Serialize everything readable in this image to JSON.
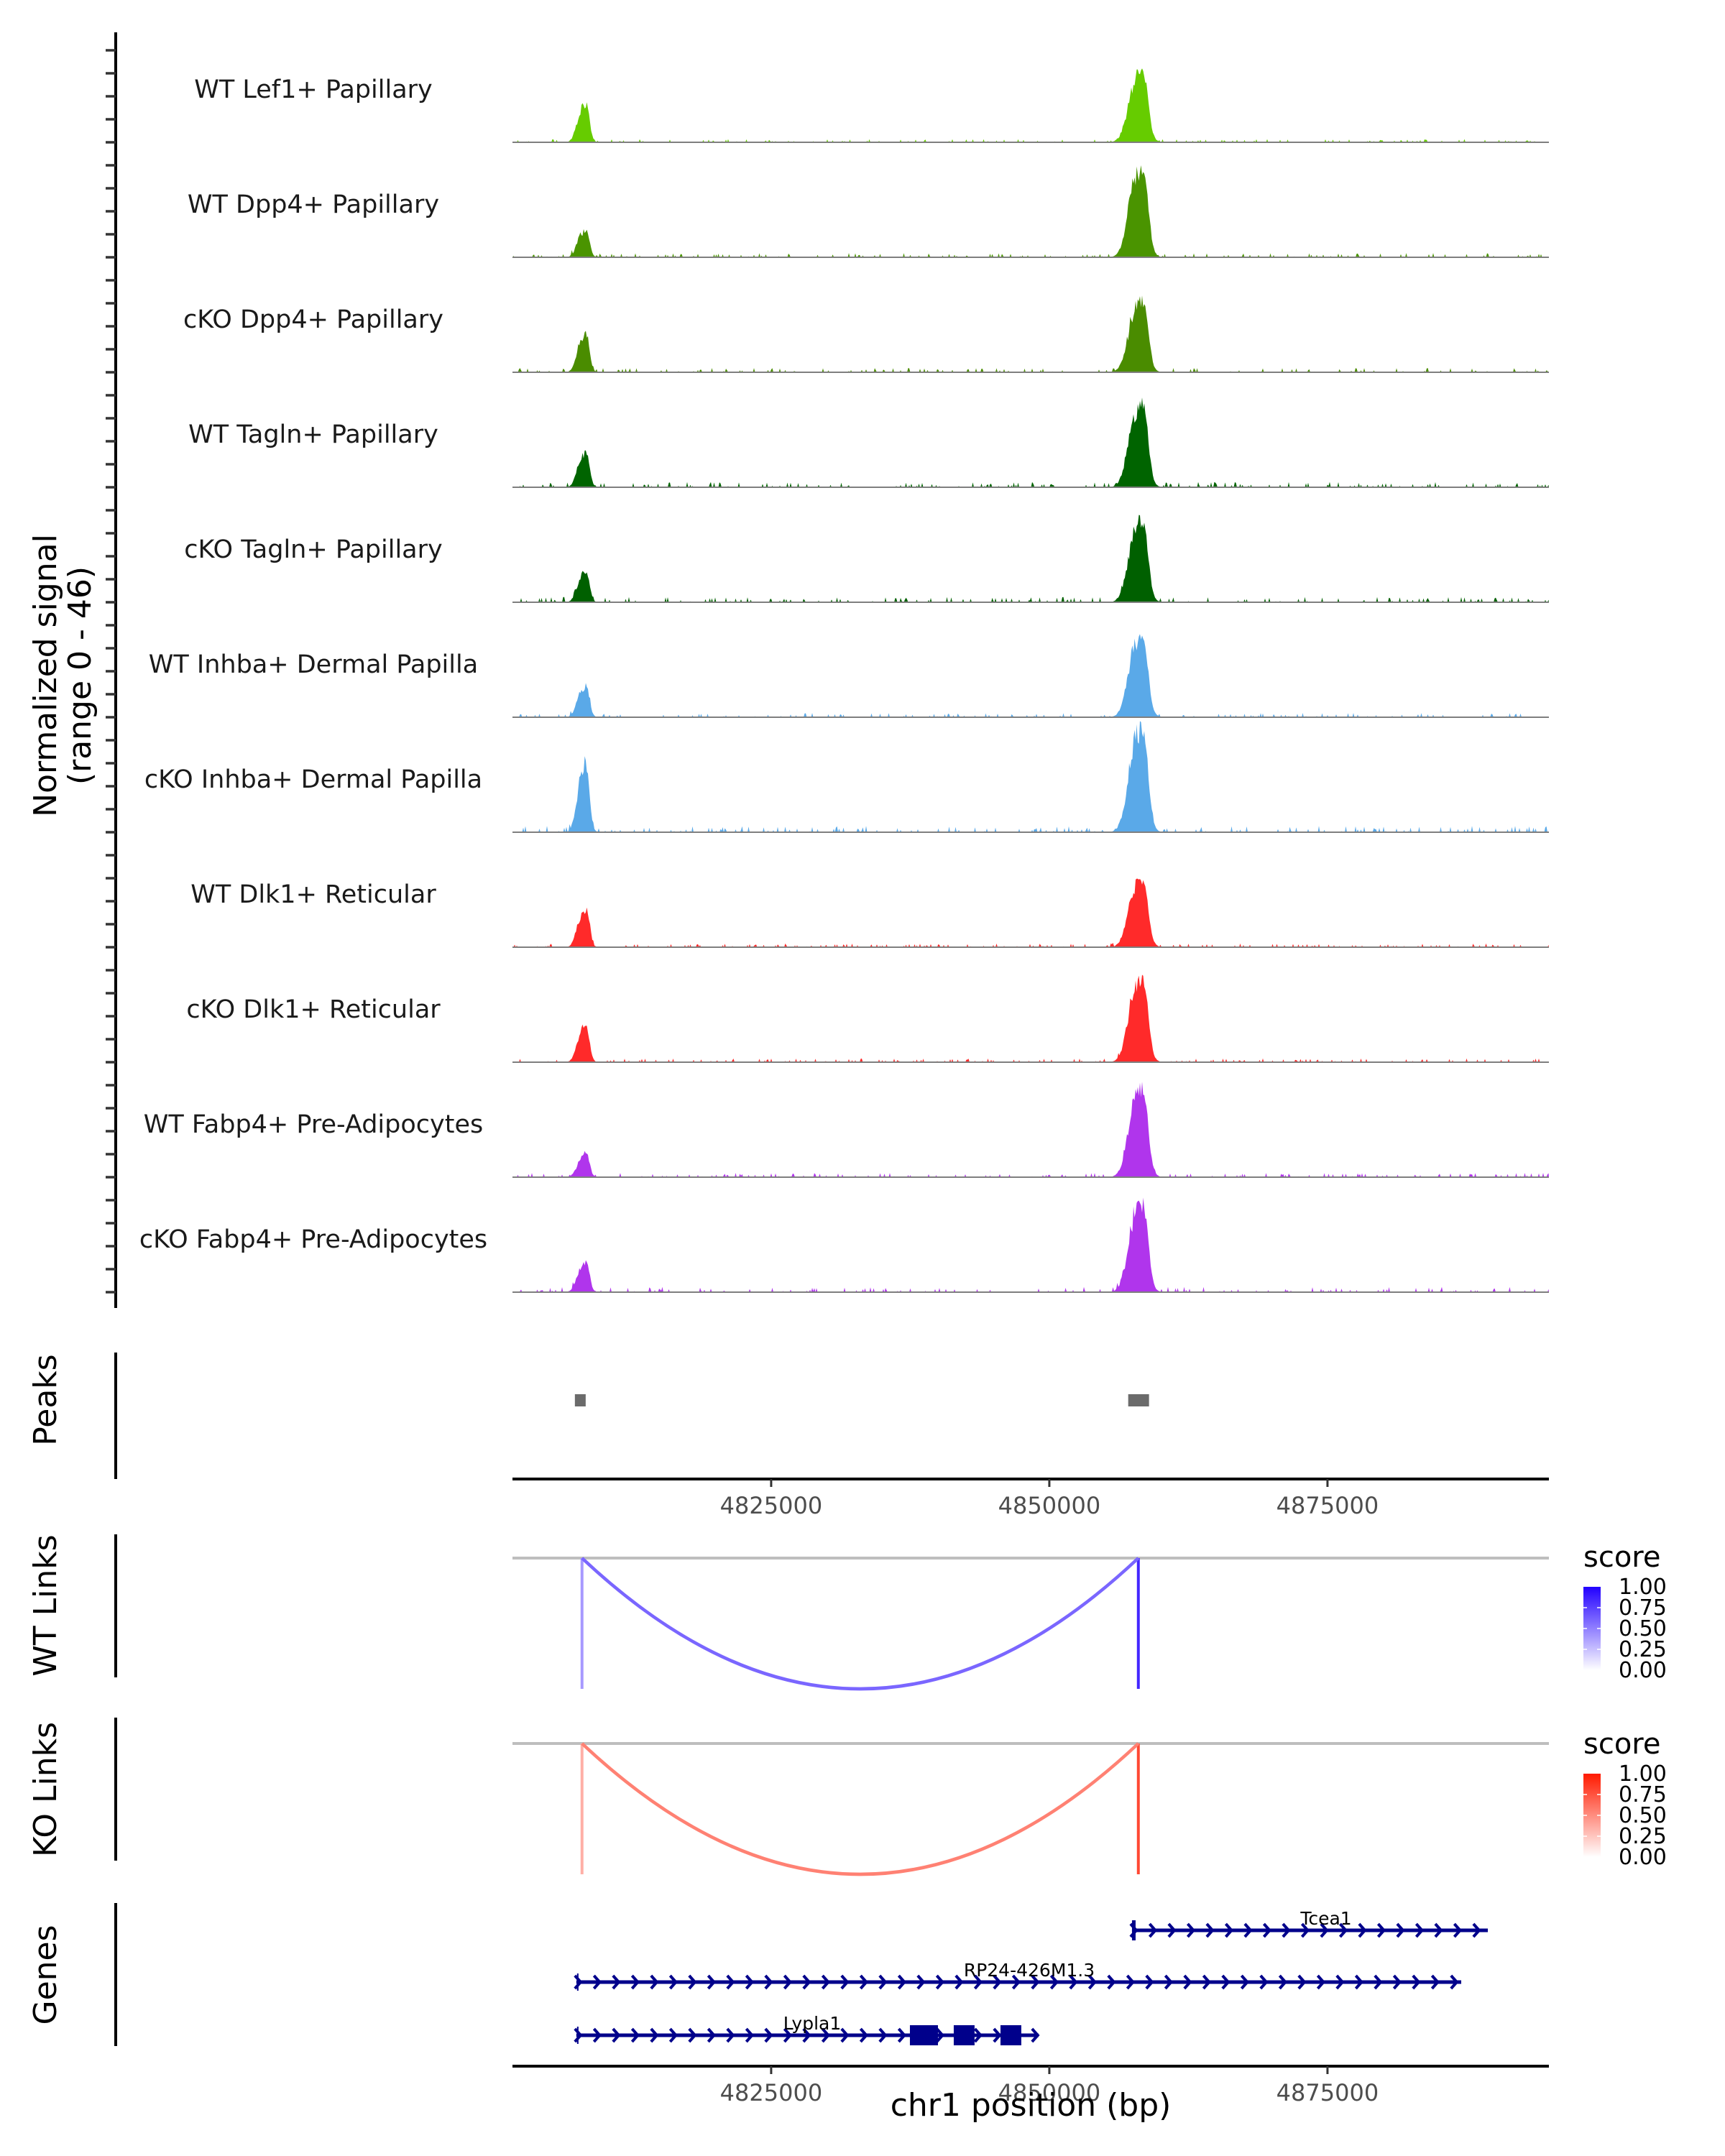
{
  "chart_data": {
    "type": "area",
    "title": "",
    "xlabel": "chr1 position (bp)",
    "ylabel": "Normalized signal\n(range 0 - 46)",
    "ylabel_lines": [
      "Normalized signal",
      "(range 0 - 46)"
    ],
    "chromosome": "chr1",
    "xlim": [
      4801750,
      4894900
    ],
    "x_ticks": [
      4825000,
      4850000,
      4875000
    ],
    "x_tick_labels": [
      "4825000",
      "4850000",
      "4875000"
    ],
    "ylim": [
      0,
      46
    ],
    "grid": false,
    "coverage_tracks": [
      {
        "name": "WT Lef1+ Papillary",
        "color": "#66cc00",
        "peaks": [
          {
            "position": 4808000,
            "value": 15.5
          },
          {
            "position": 4857800,
            "value": 29.5
          }
        ],
        "background": 0.6
      },
      {
        "name": "WT Dpp4+ Papillary",
        "color": "#4a9400",
        "peaks": [
          {
            "position": 4808000,
            "value": 11
          },
          {
            "position": 4857800,
            "value": 37
          }
        ],
        "background": 0.8
      },
      {
        "name": "cKO Dpp4+ Papillary",
        "color": "#4a8c00",
        "peaks": [
          {
            "position": 4808000,
            "value": 15.5
          },
          {
            "position": 4857800,
            "value": 29.5
          }
        ],
        "background": 0.8
      },
      {
        "name": "WT Tagln+ Papillary",
        "color": "#006400",
        "peaks": [
          {
            "position": 4808000,
            "value": 14
          },
          {
            "position": 4857800,
            "value": 35
          }
        ],
        "background": 1.0
      },
      {
        "name": "cKO Tagln+ Papillary",
        "color": "#006000",
        "peaks": [
          {
            "position": 4808000,
            "value": 12.5
          },
          {
            "position": 4857800,
            "value": 33.5
          }
        ],
        "background": 1.0
      },
      {
        "name": "WT Inhba+ Dermal Papilla",
        "color": "#5aa9e8",
        "peaks": [
          {
            "position": 4808000,
            "value": 12.5
          },
          {
            "position": 4857800,
            "value": 33.5
          }
        ],
        "background": 0.8
      },
      {
        "name": "cKO Inhba+ Dermal Papilla",
        "color": "#5aa9e8",
        "peaks": [
          {
            "position": 4808000,
            "value": 27.5
          },
          {
            "position": 4857800,
            "value": 43
          }
        ],
        "background": 1.2
      },
      {
        "name": "WT Dlk1+ Reticular",
        "color": "#ff2a2a",
        "peaks": [
          {
            "position": 4808000,
            "value": 15.5
          },
          {
            "position": 4857800,
            "value": 28
          }
        ],
        "background": 0.7
      },
      {
        "name": "cKO Dlk1+ Reticular",
        "color": "#ff2a2a",
        "peaks": [
          {
            "position": 4808000,
            "value": 14.5
          },
          {
            "position": 4857800,
            "value": 35.5
          }
        ],
        "background": 0.7
      },
      {
        "name": "WT Fabp4+ Pre-Adipocytes",
        "color": "#b035ec",
        "peaks": [
          {
            "position": 4808000,
            "value": 9
          },
          {
            "position": 4857800,
            "value": 36.5
          }
        ],
        "background": 0.8
      },
      {
        "name": "cKO Fabp4+ Pre-Adipocytes",
        "color": "#b035ec",
        "peaks": [
          {
            "position": 4808000,
            "value": 12.5
          },
          {
            "position": 4857800,
            "value": 36.5
          }
        ],
        "background": 1.0
      }
    ],
    "peaks_track": {
      "label": "Peaks",
      "color": "#6b6b6b",
      "regions": [
        {
          "start": 4807360,
          "end": 4808330
        },
        {
          "start": 4857090,
          "end": 4858960
        }
      ]
    },
    "link_tracks": [
      {
        "label": "WT Links",
        "links": [
          {
            "start": 4808000,
            "end": 4858000,
            "score": 0.6
          }
        ],
        "anchor_scores": [
          0.4,
          0.85
        ],
        "legend": {
          "title": "score",
          "ticks": [
            "1.00",
            "0.75",
            "0.50",
            "0.25",
            "0.00"
          ],
          "low_color": "#ffffff",
          "high_color": "#2200ff"
        }
      },
      {
        "label": "KO Links",
        "links": [
          {
            "start": 4808000,
            "end": 4858000,
            "score": 0.55
          }
        ],
        "anchor_scores": [
          0.35,
          0.8
        ],
        "legend": {
          "title": "score",
          "ticks": [
            "1.00",
            "0.75",
            "0.50",
            "0.25",
            "0.00"
          ],
          "low_color": "#ffffff",
          "high_color": "#ff1a00"
        }
      }
    ],
    "genes_track": {
      "label": "Genes",
      "color": "#00008b",
      "genes": [
        {
          "name": "Tcea1",
          "strand": "+",
          "start": 4857430,
          "end": 4889410,
          "row": 0,
          "exons": [
            [
              4857430,
              4857700
            ]
          ]
        },
        {
          "name": "RP24-426M1.3",
          "strand": "+",
          "start": 4807490,
          "end": 4887020,
          "row": 1,
          "exons": []
        },
        {
          "name": "Lypla1",
          "strand": "+",
          "start": 4807490,
          "end": 4849030,
          "row": 2,
          "exons": [
            [
              4837470,
              4839990
            ],
            [
              4841410,
              4843280
            ],
            [
              4845610,
              4847480
            ]
          ]
        }
      ]
    }
  }
}
